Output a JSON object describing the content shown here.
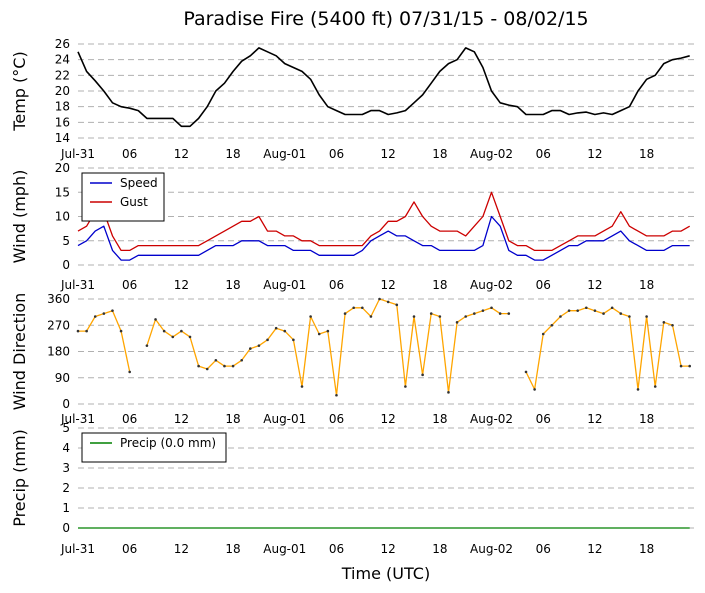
{
  "page": {
    "title": "Paradise Fire (5400 ft) 07/31/15 - 08/02/15",
    "xlabel": "Time (UTC)"
  },
  "x_ticks": [
    "Jul-31",
    "06",
    "12",
    "18",
    "Aug-01",
    "06",
    "12",
    "18",
    "Aug-02",
    "06",
    "12",
    "18"
  ],
  "colors": {
    "temp": "#000000",
    "speed": "#0000cc",
    "gust": "#cc0000",
    "direction": "#ffa500",
    "precip": "#008000"
  },
  "chart_data": [
    {
      "type": "line",
      "ylabel": "Temp (°C)",
      "ylim": [
        14,
        26
      ],
      "yticks": [
        14,
        16,
        18,
        20,
        22,
        24,
        26
      ],
      "x_hours": [
        0,
        1,
        2,
        3,
        4,
        5,
        6,
        7,
        8,
        9,
        10,
        11,
        12,
        13,
        14,
        15,
        16,
        17,
        18,
        19,
        20,
        21,
        22,
        23,
        24,
        25,
        26,
        27,
        28,
        29,
        30,
        31,
        32,
        33,
        34,
        35,
        36,
        37,
        38,
        39,
        40,
        41,
        42,
        43,
        44,
        45,
        46,
        47,
        48,
        49,
        50,
        51,
        52,
        53,
        54,
        55,
        56,
        57,
        58,
        59,
        60,
        61,
        62,
        63,
        64,
        65,
        66,
        67,
        68,
        69,
        70,
        71
      ],
      "series": [
        {
          "name": "",
          "values": [
            25,
            22.5,
            21.3,
            20,
            18.5,
            18,
            17.8,
            17.5,
            16.5,
            16.5,
            16.5,
            16.5,
            15.5,
            15.5,
            16.5,
            18,
            20,
            21,
            22.5,
            23.8,
            24.5,
            25.5,
            25,
            24.5,
            23.5,
            23,
            22.5,
            21.5,
            19.5,
            18,
            17.5,
            17,
            17,
            17,
            17.5,
            17.5,
            17,
            17.2,
            17.5,
            18.5,
            19.5,
            21,
            22.5,
            23.5,
            24,
            25.5,
            25,
            23,
            20,
            18.5,
            18.2,
            18,
            17,
            17,
            17,
            17.5,
            17.5,
            17,
            17.2,
            17.3,
            17,
            17.2,
            17,
            17.5,
            18,
            20,
            21.5,
            22,
            23.5,
            24,
            24.2,
            24.5
          ]
        }
      ]
    },
    {
      "type": "line",
      "ylabel": "Wind (mph)",
      "ylim": [
        0,
        20
      ],
      "yticks": [
        0,
        5,
        10,
        15,
        20
      ],
      "legend_position": "top-left",
      "x_hours": [
        0,
        1,
        2,
        3,
        4,
        5,
        6,
        7,
        8,
        9,
        10,
        11,
        12,
        13,
        14,
        15,
        16,
        17,
        18,
        19,
        20,
        21,
        22,
        23,
        24,
        25,
        26,
        27,
        28,
        29,
        30,
        31,
        32,
        33,
        34,
        35,
        36,
        37,
        38,
        39,
        40,
        41,
        42,
        43,
        44,
        45,
        46,
        47,
        48,
        49,
        50,
        51,
        52,
        53,
        54,
        55,
        56,
        57,
        58,
        59,
        60,
        61,
        62,
        63,
        64,
        65,
        66,
        67,
        68,
        69,
        70,
        71
      ],
      "series": [
        {
          "name": "Speed",
          "values": [
            4,
            5,
            7,
            8,
            3,
            1,
            1,
            2,
            2,
            2,
            2,
            2,
            2,
            2,
            2,
            3,
            4,
            4,
            4,
            5,
            5,
            5,
            4,
            4,
            4,
            3,
            3,
            3,
            2,
            2,
            2,
            2,
            2,
            3,
            5,
            6,
            7,
            6,
            6,
            5,
            4,
            4,
            3,
            3,
            3,
            3,
            3,
            4,
            10,
            8,
            3,
            2,
            2,
            1,
            1,
            2,
            3,
            4,
            4,
            5,
            5,
            5,
            6,
            7,
            5,
            4,
            3,
            3,
            3,
            4,
            4,
            4
          ]
        },
        {
          "name": "Gust",
          "values": [
            7,
            8,
            11,
            11,
            6,
            3,
            3,
            4,
            4,
            4,
            4,
            4,
            4,
            4,
            4,
            5,
            6,
            7,
            8,
            9,
            9,
            10,
            7,
            7,
            6,
            6,
            5,
            5,
            4,
            4,
            4,
            4,
            4,
            4,
            6,
            7,
            9,
            9,
            10,
            13,
            10,
            8,
            7,
            7,
            7,
            6,
            8,
            10,
            15,
            10,
            5,
            4,
            4,
            3,
            3,
            3,
            4,
            5,
            6,
            6,
            6,
            7,
            8,
            11,
            8,
            7,
            6,
            6,
            6,
            7,
            7,
            8
          ]
        }
      ]
    },
    {
      "type": "line",
      "ylabel": "Wind Direction",
      "ylim": [
        0,
        360
      ],
      "yticks": [
        0,
        90,
        180,
        270,
        360
      ],
      "x_hours": [
        0,
        1,
        2,
        3,
        4,
        5,
        6,
        7,
        8,
        9,
        10,
        11,
        12,
        13,
        14,
        15,
        16,
        17,
        18,
        19,
        20,
        21,
        22,
        23,
        24,
        25,
        26,
        27,
        28,
        29,
        30,
        31,
        32,
        33,
        34,
        35,
        36,
        37,
        38,
        39,
        40,
        41,
        42,
        43,
        44,
        45,
        46,
        47,
        48,
        49,
        50,
        51,
        52,
        53,
        54,
        55,
        56,
        57,
        58,
        59,
        60,
        61,
        62,
        63,
        64,
        65,
        66,
        67,
        68,
        69,
        70,
        71
      ],
      "series": [
        {
          "name": "",
          "values": [
            250,
            250,
            300,
            310,
            320,
            250,
            110,
            null,
            200,
            290,
            250,
            230,
            250,
            230,
            130,
            120,
            150,
            130,
            130,
            150,
            190,
            200,
            220,
            260,
            250,
            220,
            60,
            300,
            240,
            250,
            30,
            310,
            330,
            330,
            300,
            360,
            350,
            340,
            60,
            300,
            100,
            310,
            300,
            40,
            280,
            300,
            310,
            320,
            330,
            310,
            310,
            null,
            110,
            50,
            240,
            270,
            300,
            320,
            320,
            330,
            320,
            310,
            330,
            310,
            300,
            50,
            300,
            60,
            280,
            270,
            130,
            130
          ]
        }
      ]
    },
    {
      "type": "line",
      "ylabel": "Precip (mm)",
      "ylim": [
        0,
        5
      ],
      "yticks": [
        0,
        1,
        2,
        3,
        4,
        5
      ],
      "legend_position": "top-left",
      "x_hours": [
        0,
        71
      ],
      "series": [
        {
          "name": "Precip (0.0 mm)",
          "values": [
            0,
            0
          ]
        }
      ]
    }
  ]
}
